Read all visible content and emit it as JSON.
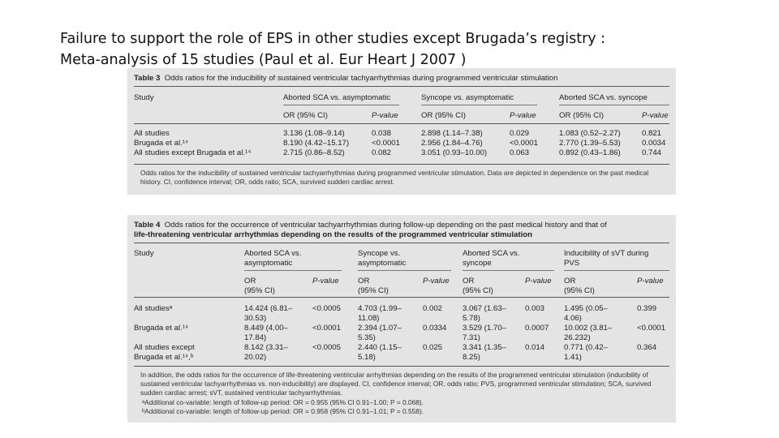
{
  "slide": {
    "title_line1": "Failure to support the role of EPS in other studies except Brugada’s registry :",
    "title_line2": "Meta-analysis of 15 studies (Paul et al. Eur Heart J 2007 )"
  },
  "table3": {
    "label": "Table 3",
    "caption": "Odds ratios for the inducibility of sustained ventricular tachyarrhythmias during programmed ventricular stimulation",
    "study_header": "Study",
    "groups": [
      "Aborted SCA vs. asymptomatic",
      "Syncope vs. asymptomatic",
      "Aborted SCA vs. syncope"
    ],
    "sub_or": "OR (95% CI)",
    "sub_p": "P-value",
    "rows": [
      {
        "study": "All studies",
        "cells": [
          "3.136 (1.08–9.14)",
          "0.038",
          "2.898 (1.14–7.38)",
          "0.029",
          "1.083 (0.52–2.27)",
          "0.821"
        ]
      },
      {
        "study": "Brugada et al.¹⁴",
        "cells": [
          "8.190 (4.42–15.17)",
          "<0.0001",
          "2.956 (1.84–4.76)",
          "<0.0001",
          "2.770 (1.39–5.53)",
          "0.0034"
        ]
      },
      {
        "study": "All studies except Brugada et al.¹⁴",
        "cells": [
          "2.715 (0.86–8.52)",
          "0.082",
          "3.051 (0.93–10.00)",
          "0.063",
          "0.892 (0.43–1.86)",
          "0.744"
        ]
      }
    ],
    "footnote": "Odds ratios for the inducibility of sustained ventricular tachyarrhythmias during programmed ventricular stimulation. Data are depicted in dependence on the past medical history. CI, confidence interval; OR, odds ratio; SCA, survived sudden cardiac arrest."
  },
  "table4": {
    "label": "Table 4",
    "caption_line1": "Odds ratios for the occurrence of ventricular tachyarrhythmias during follow-up depending on the past medical history and that of",
    "caption_line2": "life-threatening ventricular arrhythmias depending on the results of the programmed ventricular stimulation",
    "study_header": "Study",
    "groups": [
      "Aborted SCA vs.\nasymptomatic",
      "Syncope vs.\nasymptomatic",
      "Aborted SCA vs.\nsyncope",
      "Inducibility of sVT during\nPVS"
    ],
    "sub_or": "OR\n(95% CI)",
    "sub_p": "P-value",
    "rows": [
      {
        "study": "All studiesᵃ",
        "cells": [
          "14.424 (6.81–\n30.53)",
          "<0.0005",
          "4.703 (1.99–\n11.08)",
          "0.002",
          "3.067 (1.63–\n5.78)",
          "0.003",
          "1.495 (0.05–\n4.06)",
          "0.399"
        ]
      },
      {
        "study": "Brugada et al.¹⁴",
        "cells": [
          "8.449 (4.00–\n17.84)",
          "<0.0001",
          "2.394 (1.07–\n5.35)",
          "0.0334",
          "3.529 (1.70–\n7.31)",
          "0.0007",
          "10.002 (3.81–\n26.232)",
          "<0.0001"
        ]
      },
      {
        "study": "All studies except\n   Brugada et al.¹⁴,ᵇ",
        "cells": [
          "8.142 (3.31–\n20.02)",
          "<0.0005",
          "2.440 (1.15–\n5.18)",
          "0.025",
          "3.341 (1.35–\n8.25)",
          "0.014",
          "0.771 (0.42–\n1.41)",
          "0.364"
        ]
      }
    ],
    "footnote_main": "In addition, the odds ratios for the occurrence of life-threatening ventricular arrhythmias depending on the results of the programmed ventricular stimulation (inducibility of sustained ventricular tachyarrhythmias vs. non-inducibility) are displayed. CI, confidence interval; OR, odds ratio; PVS, programmed ventricular stimulation; SCA, survived sudden cardiac arrest; sVT, sustained ventricular tachyarrhythmias.",
    "footnote_a": "ᵃAdditional co-variable: length of follow-up period: OR = 0.955 (95% CI 0.91–1.00; P = 0.068).",
    "footnote_b": "ᵇAdditional co-variable: length of follow-up period: OR = 0.958 (95% CI 0.91–1.01; P = 0.558)."
  }
}
